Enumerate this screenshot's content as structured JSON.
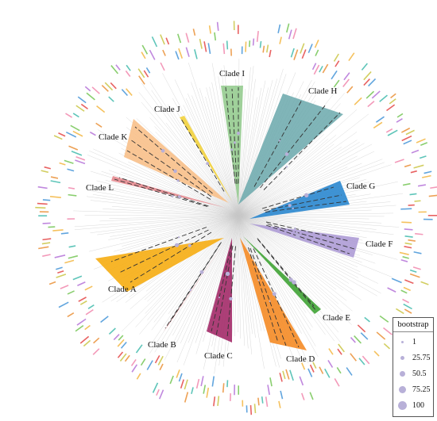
{
  "figure": {
    "clades": [
      {
        "id": "I",
        "label": "Clade I",
        "color": "#8fc98a"
      },
      {
        "id": "H",
        "label": "Clade H",
        "color": "#6aa8ac"
      },
      {
        "id": "G",
        "label": "Clade G",
        "color": "#2a87cf"
      },
      {
        "id": "F",
        "label": "Clade F",
        "color": "#a996d3"
      },
      {
        "id": "E",
        "label": "Clade E",
        "color": "#3fa334"
      },
      {
        "id": "D",
        "label": "Clade D",
        "color": "#f58b25"
      },
      {
        "id": "C",
        "label": "Clade C",
        "color": "#a32a68"
      },
      {
        "id": "B",
        "label": "Clade B",
        "color": "#e8787e"
      },
      {
        "id": "A",
        "label": "Clade A",
        "color": "#f6ad12"
      },
      {
        "id": "L",
        "label": "Clade L",
        "color": "#e58a8f"
      },
      {
        "id": "K",
        "label": "Clade K",
        "color": "#f8c08a"
      },
      {
        "id": "J",
        "label": "Clade J",
        "color": "#f2d23c"
      }
    ]
  },
  "legend": {
    "title": "bootstrap",
    "items": [
      {
        "label": "1",
        "level": 1
      },
      {
        "label": "25.75",
        "level": 25.75
      },
      {
        "label": "50.5",
        "level": 50.5
      },
      {
        "label": "75.25",
        "level": 75.25
      },
      {
        "label": "100",
        "level": 100
      }
    ],
    "dot_color": "#b8b0d8"
  },
  "colors": {
    "label_palette": [
      "#e23b3b",
      "#3a8fd6",
      "#f2b134",
      "#6cc24a",
      "#b06ad6",
      "#f07fa8",
      "#36b7a8",
      "#e8892a",
      "#c7c23a"
    ],
    "branch": "#c9c9c9",
    "inner_branch": "#333333"
  }
}
